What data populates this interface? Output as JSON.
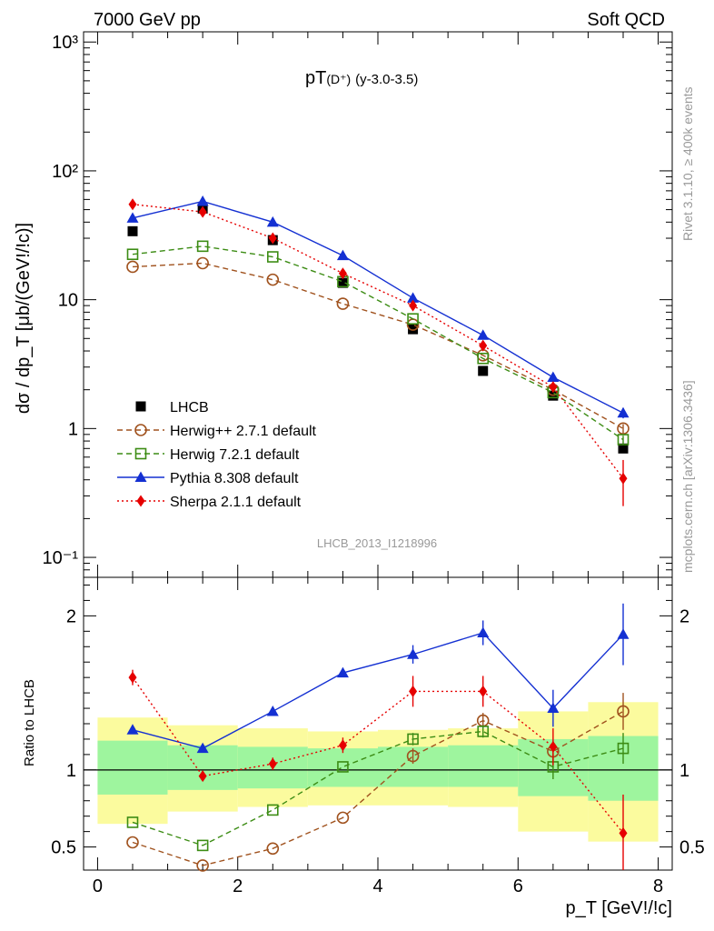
{
  "header": {
    "left": "7000 GeV pp",
    "right": "Soft QCD"
  },
  "side_labels": {
    "rivet": "Rivet 3.1.10, ≥ 400k events",
    "mcplots": "mcplots.cern.ch [arXiv:1306.3436]"
  },
  "colors": {
    "data": "#000000",
    "herwigpp": "#a0521e",
    "herwig7": "#3c8c14",
    "pythia": "#1430d2",
    "sherpa": "#e60000",
    "band_inner": "#9ef59e",
    "band_outer": "#fbfb9e"
  },
  "chart_data": [
    {
      "type": "line",
      "panel": "main",
      "title_main": "pT",
      "title_sub": "(D⁺)",
      "title_range": "(y-3.0-3.5)",
      "xlabel": "p_T [GeV!/!c]",
      "ylabel": "dσ / dp_T [μb/(GeV!/!c)]",
      "yscale": "log",
      "xlim": [
        -0.2,
        8.2
      ],
      "ylim": [
        0.07,
        1200
      ],
      "ytick_labels": [
        "10⁻¹",
        "1",
        "10",
        "10²",
        "10³"
      ],
      "ytick_values": [
        0.1,
        1,
        10,
        100,
        1000
      ],
      "analysis_id": "LHCB_2013_I1218996",
      "legend_position": "bottom-left",
      "x": [
        0.5,
        1.5,
        2.5,
        3.5,
        4.5,
        5.5,
        6.5,
        7.5
      ],
      "series": [
        {
          "name": "LHCB",
          "key": "data",
          "marker": "square-filled",
          "values": [
            34,
            51,
            29,
            13.5,
            5.9,
            2.8,
            1.8,
            0.7
          ],
          "errors": [
            0,
            0,
            0,
            0,
            0,
            0,
            0,
            0.05
          ]
        },
        {
          "name": "Herwig++ 2.7.1 default",
          "key": "herwigpp",
          "marker": "circle-open",
          "dash": "dashed",
          "values": [
            18,
            19.2,
            14.3,
            9.3,
            6.4,
            3.7,
            2.0,
            1.0
          ],
          "errors": [
            0,
            0,
            0,
            0,
            0,
            0,
            0,
            0.08
          ]
        },
        {
          "name": "Herwig 7.2.1 default",
          "key": "herwig7",
          "marker": "square-open",
          "dash": "dashed",
          "values": [
            22.5,
            26,
            21.5,
            13.8,
            7.1,
            3.5,
            1.9,
            0.82
          ],
          "errors": [
            0,
            0,
            0,
            0,
            0,
            0,
            0,
            0.06
          ]
        },
        {
          "name": "Pythia 8.308 default",
          "key": "pythia",
          "marker": "triangle-filled",
          "dash": "solid",
          "values": [
            43,
            58,
            40,
            22,
            10.3,
            5.3,
            2.5,
            1.32
          ],
          "errors": [
            0,
            0,
            0,
            0,
            0,
            0,
            0.15,
            0.12
          ]
        },
        {
          "name": "Sherpa 2.1.1 default",
          "key": "sherpa",
          "marker": "diamond-filled",
          "dash": "dotted",
          "values": [
            55,
            48,
            30,
            16,
            9.0,
            4.4,
            2.1,
            0.41
          ],
          "errors": [
            0,
            0,
            0,
            0,
            0,
            0,
            0,
            0.16
          ]
        }
      ]
    },
    {
      "type": "line",
      "panel": "ratio",
      "ylabel": "Ratio to LHCB",
      "xlabel": "p_T [GeV!/!c]",
      "xlim": [
        -0.2,
        8.2
      ],
      "ylim": [
        0.35,
        2.25
      ],
      "ytick_labels": [
        "0.5",
        "1",
        "2"
      ],
      "ytick_values": [
        0.5,
        1,
        2
      ],
      "xtick_labels": [
        "0",
        "2",
        "4",
        "6",
        "8"
      ],
      "xtick_values": [
        0,
        2,
        4,
        6,
        8
      ],
      "x": [
        0.5,
        1.5,
        2.5,
        3.5,
        4.5,
        5.5,
        6.5,
        7.5
      ],
      "bins": [
        [
          0,
          1
        ],
        [
          1,
          2
        ],
        [
          2,
          3
        ],
        [
          3,
          4
        ],
        [
          4,
          5
        ],
        [
          5,
          6
        ],
        [
          6,
          7
        ],
        [
          7,
          8
        ]
      ],
      "band_inner": [
        [
          0.84,
          1.19
        ],
        [
          0.87,
          1.16
        ],
        [
          0.88,
          1.15
        ],
        [
          0.89,
          1.14
        ],
        [
          0.89,
          1.15
        ],
        [
          0.89,
          1.16
        ],
        [
          0.83,
          1.2
        ],
        [
          0.8,
          1.22
        ]
      ],
      "band_outer": [
        [
          0.65,
          1.34
        ],
        [
          0.73,
          1.29
        ],
        [
          0.76,
          1.27
        ],
        [
          0.77,
          1.25
        ],
        [
          0.77,
          1.26
        ],
        [
          0.76,
          1.27
        ],
        [
          0.6,
          1.38
        ],
        [
          0.535,
          1.44
        ]
      ],
      "series": [
        {
          "name": "Herwig++ 2.7.1 default",
          "key": "herwigpp",
          "marker": "circle-open",
          "dash": "dashed",
          "values": [
            0.53,
            0.38,
            0.49,
            0.69,
            1.09,
            1.32,
            1.12,
            1.38
          ],
          "errors": [
            0,
            0,
            0,
            0,
            0.05,
            0.05,
            0.07,
            0.12
          ]
        },
        {
          "name": "Herwig 7.2.1 default",
          "key": "herwig7",
          "marker": "square-open",
          "dash": "dashed",
          "values": [
            0.66,
            0.51,
            0.74,
            1.02,
            1.2,
            1.25,
            1.02,
            1.14
          ],
          "errors": [
            0,
            0,
            0,
            0,
            0.04,
            0.04,
            0.08,
            0.1
          ]
        },
        {
          "name": "Pythia 8.308 default",
          "key": "pythia",
          "marker": "triangle-filled",
          "dash": "solid",
          "values": [
            1.26,
            1.14,
            1.38,
            1.63,
            1.75,
            1.89,
            1.4,
            1.88
          ],
          "errors": [
            0,
            0,
            0,
            0,
            0.06,
            0.08,
            0.12,
            0.2
          ]
        },
        {
          "name": "Sherpa 2.1.1 default",
          "key": "sherpa",
          "marker": "diamond-filled",
          "dash": "dotted",
          "values": [
            1.6,
            0.96,
            1.04,
            1.16,
            1.51,
            1.51,
            1.15,
            0.59
          ],
          "errors": [
            0.05,
            0.03,
            0.04,
            0.05,
            0.1,
            0.1,
            0.12,
            0.25
          ]
        }
      ]
    }
  ]
}
